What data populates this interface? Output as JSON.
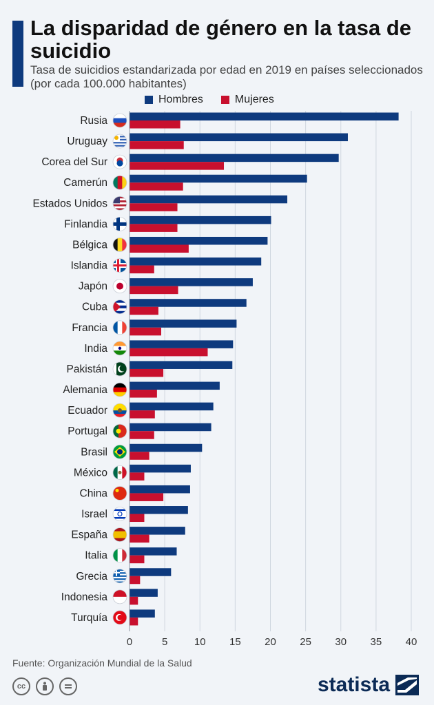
{
  "header": {
    "title": "La disparidad de género en la tasa de suicidio",
    "subtitle": "Tasa de suicidios estandarizada por edad en 2019 en países seleccionados (por cada 100.000 habitantes)"
  },
  "footer": {
    "source": "Fuente: Organización Mundial de la Salud",
    "brand": "statista",
    "license_icons": [
      "cc-icon",
      "attribution-icon",
      "no-derivatives-icon"
    ]
  },
  "colors": {
    "accent": "#0e3a7e",
    "men": "#0e3a7e",
    "women": "#c8102e",
    "grid": "#cfd6df"
  },
  "chart_data": {
    "type": "bar",
    "orientation": "horizontal",
    "legend": "top",
    "grid": true,
    "xlim": [
      0,
      40
    ],
    "xticks": [
      0,
      5,
      10,
      15,
      20,
      25,
      30,
      35,
      40
    ],
    "categories": [
      "Rusia",
      "Uruguay",
      "Corea del Sur",
      "Camerún",
      "Estados Unidos",
      "Finlandia",
      "Bélgica",
      "Islandia",
      "Japón",
      "Cuba",
      "Francia",
      "India",
      "Pakistán",
      "Alemania",
      "Ecuador",
      "Portugal",
      "Brasil",
      "México",
      "China",
      "Israel",
      "España",
      "Italia",
      "Grecia",
      "Indonesia",
      "Turquía"
    ],
    "series": [
      {
        "name": "Hombres",
        "color": "#0e3a7e",
        "values": [
          38.2,
          31.0,
          29.7,
          25.2,
          22.4,
          20.1,
          19.6,
          18.7,
          17.5,
          16.6,
          15.2,
          14.7,
          14.6,
          12.8,
          11.9,
          11.6,
          10.3,
          8.7,
          8.6,
          8.3,
          7.9,
          6.7,
          5.9,
          4.0,
          3.6
        ]
      },
      {
        "name": "Mujeres",
        "color": "#c8102e",
        "values": [
          7.2,
          7.7,
          13.4,
          7.6,
          6.8,
          6.8,
          8.4,
          3.5,
          6.9,
          4.1,
          4.5,
          11.1,
          4.8,
          3.9,
          3.6,
          3.5,
          2.8,
          2.1,
          4.8,
          2.1,
          2.8,
          2.1,
          1.5,
          1.2,
          1.2
        ]
      }
    ],
    "flags": [
      "flag-russia-icon",
      "flag-uruguay-icon",
      "flag-south-korea-icon",
      "flag-cameroon-icon",
      "flag-usa-icon",
      "flag-finland-icon",
      "flag-belgium-icon",
      "flag-iceland-icon",
      "flag-japan-icon",
      "flag-cuba-icon",
      "flag-france-icon",
      "flag-india-icon",
      "flag-pakistan-icon",
      "flag-germany-icon",
      "flag-ecuador-icon",
      "flag-portugal-icon",
      "flag-brazil-icon",
      "flag-mexico-icon",
      "flag-china-icon",
      "flag-israel-icon",
      "flag-spain-icon",
      "flag-italy-icon",
      "flag-greece-icon",
      "flag-indonesia-icon",
      "flag-turkey-icon"
    ]
  }
}
